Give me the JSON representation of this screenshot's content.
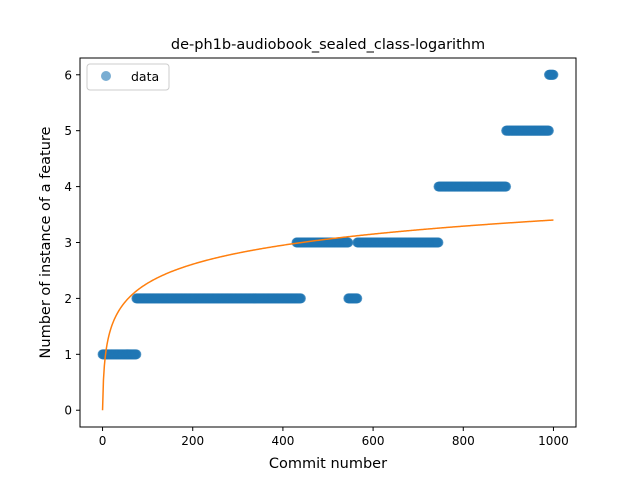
{
  "chart_data": {
    "type": "scatter",
    "title": "de-ph1b-audiobook_sealed_class-logarithm",
    "xlabel": "Commit number",
    "ylabel": "Number of instance of a feature",
    "xlim": [
      -50,
      1050
    ],
    "ylim": [
      -0.3,
      6.3
    ],
    "xticks": [
      0,
      200,
      400,
      600,
      800,
      1000
    ],
    "yticks": [
      0,
      1,
      2,
      3,
      4,
      5,
      6
    ],
    "legend": {
      "position": "top-left",
      "entries": [
        "data"
      ]
    },
    "grid": false,
    "colors": {
      "scatter": "#1f77b4",
      "fit": "#ff7f0e"
    },
    "series": [
      {
        "name": "data",
        "kind": "scatter",
        "runs": [
          {
            "x_start": 0,
            "x_end": 75,
            "y": 1
          },
          {
            "x_start": 75,
            "x_end": 440,
            "y": 2
          },
          {
            "x_start": 430,
            "x_end": 545,
            "y": 3
          },
          {
            "x_start": 545,
            "x_end": 565,
            "y": 2
          },
          {
            "x_start": 565,
            "x_end": 745,
            "y": 3
          },
          {
            "x_start": 745,
            "x_end": 895,
            "y": 4
          },
          {
            "x_start": 895,
            "x_end": 990,
            "y": 5
          },
          {
            "x_start": 990,
            "x_end": 1000,
            "y": 6
          }
        ]
      },
      {
        "kind": "line",
        "x_range": [
          0,
          1000
        ],
        "fit": {
          "form": "a*ln(x+1)",
          "a": 0.4924
        }
      }
    ]
  }
}
